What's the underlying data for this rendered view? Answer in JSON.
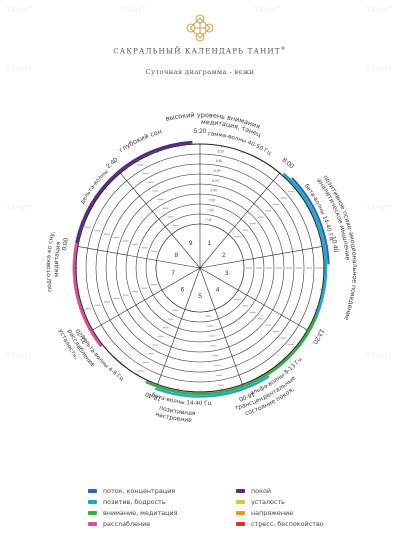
{
  "header": {
    "brand": "САКРАЛЬНЫЙ КАЛЕНДАРЬ ТАНИТ",
    "registered": "®",
    "subtitle": "Суточная диаграмма - вежи"
  },
  "watermark": "ТАНИТ",
  "diagram": {
    "rings": 8,
    "outer_time_labels": [
      "5:20",
      "8:00",
      "10:40",
      "13:20",
      "16:00",
      "18:40",
      "21:20",
      "0:00",
      "2:40"
    ],
    "sector_numbers": [
      "1",
      "2",
      "3",
      "4",
      "5",
      "6",
      "7",
      "8",
      "9"
    ],
    "inner_time_ticks": [
      "5:20",
      "5:40",
      "6:00",
      "6:20",
      "6:40",
      "7:00",
      "7:20",
      "7:40"
    ],
    "outer_captions": [
      {
        "id": "c1",
        "text": "высокий уровень внимания",
        "color": "#333"
      },
      {
        "id": "c2",
        "text": "медитация, танец",
        "color": "#333"
      },
      {
        "id": "c3",
        "text": "гамма-волны 40-50 Гц",
        "color": "#333"
      },
      {
        "id": "c4",
        "text": "бета-волны 14-40 Гц",
        "color": "#333"
      },
      {
        "id": "c5",
        "text": "аналитическое мышление",
        "color": "#333"
      },
      {
        "id": "c6",
        "text": "позитивное психо-эмоциональное поведение",
        "color": "#333"
      },
      {
        "id": "c7",
        "text": "альфа-волны 8-13 Гц",
        "color": "#333"
      },
      {
        "id": "c8",
        "text": "трансцендентальные",
        "color": "#333"
      },
      {
        "id": "c9",
        "text": "состояние покоя,",
        "color": "#333"
      },
      {
        "id": "c10",
        "text": "бета-волны 14-40 Гц",
        "color": "#333"
      },
      {
        "id": "c11",
        "text": "позитивная",
        "color": "#333"
      },
      {
        "id": "c12",
        "text": "настроение",
        "color": "#333"
      },
      {
        "id": "c13",
        "text": "дельта-волны 4-8 Гц",
        "color": "#333"
      },
      {
        "id": "c14",
        "text": "расслабление",
        "color": "#333"
      },
      {
        "id": "c15",
        "text": "усталость,",
        "color": "#333"
      },
      {
        "id": "c16",
        "text": "подготовка ко сну,",
        "color": "#333"
      },
      {
        "id": "c17",
        "text": "медитация",
        "color": "#333"
      },
      {
        "id": "c18",
        "text": "дельта-волны",
        "color": "#333"
      },
      {
        "id": "c19",
        "text": "глубокий сон",
        "color": "#333"
      }
    ],
    "arc_colors": {
      "cyan": "#21a5c9",
      "blue": "#2a66b8",
      "green": "#3aab4a",
      "pink": "#d94f98",
      "purple": "#5b2a86"
    }
  },
  "legend": {
    "items": [
      {
        "label": "поток, концентрация",
        "color": "#2a66b8"
      },
      {
        "label": "покой",
        "color": "#5b2a86"
      },
      {
        "label": "позитив, бодрость",
        "color": "#21a5c9"
      },
      {
        "label": "усталость",
        "color": "#d8c24a"
      },
      {
        "label": "внимание, медитация",
        "color": "#3aab4a"
      },
      {
        "label": "напряжение",
        "color": "#e8962c"
      },
      {
        "label": "расслабление",
        "color": "#d94f98"
      },
      {
        "label": "стресс, беспокойство",
        "color": "#d9342b"
      }
    ]
  }
}
